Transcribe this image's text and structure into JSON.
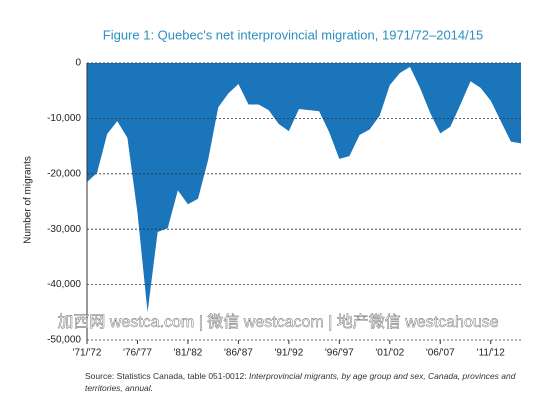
{
  "chart_data": {
    "type": "area",
    "title": "Figure 1: Quebec's net interprovincial migration, 1971/72–2014/15",
    "y_label": "Number of migrants",
    "categories": [
      "'71/'72",
      null,
      null,
      null,
      null,
      "'76/'77",
      null,
      null,
      null,
      null,
      "'81/'82",
      null,
      null,
      null,
      null,
      "'86/'87",
      null,
      null,
      null,
      null,
      "'91/'92",
      null,
      null,
      null,
      null,
      "'96/'97",
      null,
      null,
      null,
      null,
      "'01/'02",
      null,
      null,
      null,
      null,
      "'06/'07",
      null,
      null,
      null,
      null,
      "'11/'12",
      null,
      null,
      null
    ],
    "values": [
      -21500,
      -19800,
      -12800,
      -10500,
      -13500,
      -27000,
      -45000,
      -30500,
      -29800,
      -23000,
      -25500,
      -24500,
      -17500,
      -8000,
      -5500,
      -3800,
      -7500,
      -7500,
      -8500,
      -11000,
      -12300,
      -8300,
      -8500,
      -8700,
      -12500,
      -17300,
      -16800,
      -13000,
      -12000,
      -9500,
      -4000,
      -1800,
      -700,
      -4500,
      -9000,
      -12700,
      -11500,
      -7500,
      -3300,
      -4500,
      -6800,
      -10500,
      -14200,
      -14500
    ],
    "color": "#1b75bb",
    "ylim": [
      -50000,
      0
    ],
    "yticks": [
      0,
      {
        "value": -10000,
        "label": "-10,000"
      },
      {
        "value": -20000,
        "label": "-20,000"
      },
      {
        "value": -30000,
        "label": "-30,000"
      },
      {
        "value": -40000,
        "label": "-40,000"
      },
      {
        "value": -50000,
        "label": "-50,000"
      }
    ],
    "grid": true,
    "annotation": "加西网 westca.com | 微信 westcacom | 地产微信 westcahouse",
    "source": "Source: Statistics Canada, table 051-0012: ",
    "source_title": "Interprovincial migrants, by age group and sex, Canada, provinces and territories, annual."
  }
}
